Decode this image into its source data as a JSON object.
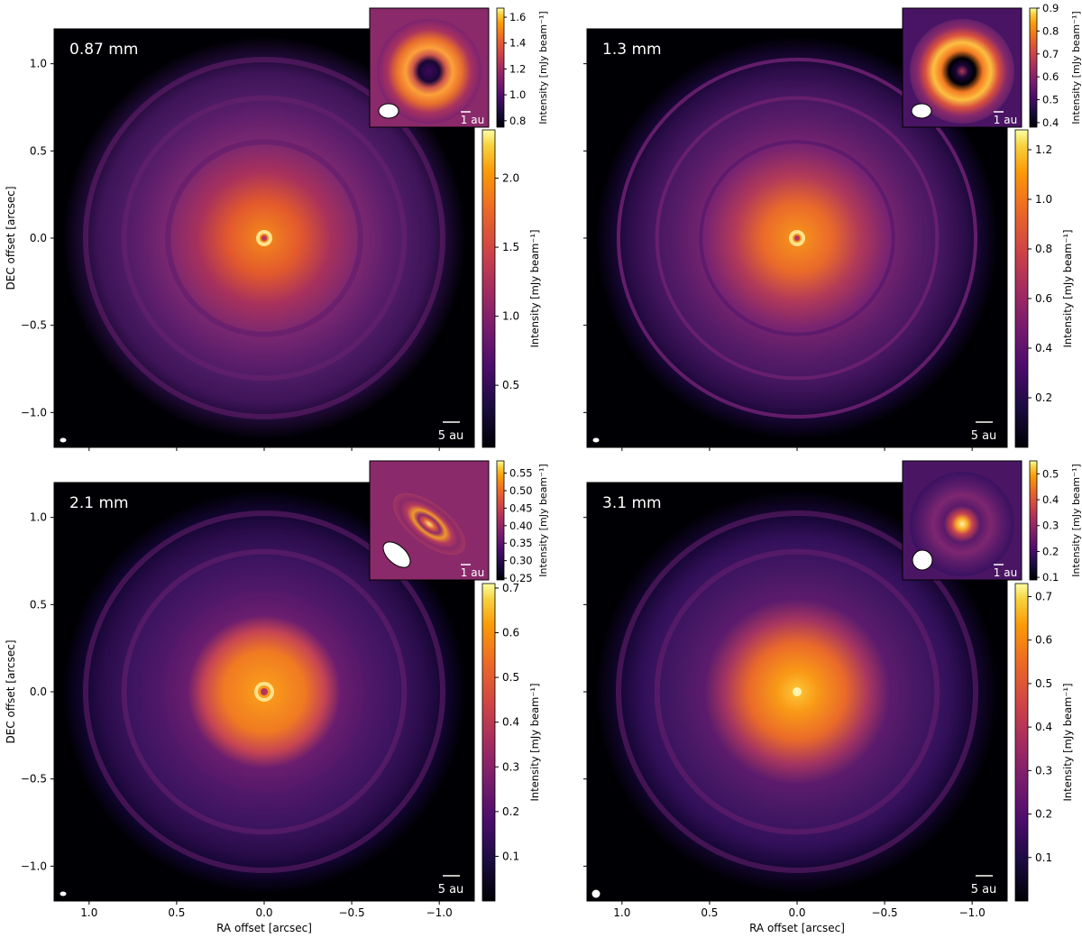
{
  "chart_data": [
    {
      "type": "heatmap",
      "label": "0.87 mm",
      "xlabel": "",
      "ylabel": "DEC offset [arcsec]",
      "xlim": [
        1.2,
        -1.2
      ],
      "ylim": [
        -1.2,
        1.2
      ],
      "xticks": [],
      "yticks": [
        {
          "v": 1.0,
          "t": "1.0"
        },
        {
          "v": 0.5,
          "t": "0.5"
        },
        {
          "v": 0.0,
          "t": "0.0"
        },
        {
          "v": -0.5,
          "t": "−0.5"
        },
        {
          "v": -1.0,
          "t": "−1.0"
        }
      ],
      "scalebar": "5 au",
      "rings_arcsec": [
        0.55,
        0.8,
        1.02
      ],
      "colorbar": {
        "label": "Intensity [mJy beam⁻¹]",
        "range": [
          0.05,
          2.35
        ],
        "ticks": [
          {
            "v": 0.5,
            "t": "0.5"
          },
          {
            "v": 1.0,
            "t": "1.0"
          },
          {
            "v": 1.5,
            "t": "1.5"
          },
          {
            "v": 2.0,
            "t": "2.0"
          }
        ]
      },
      "inset": {
        "scalebar": "1 au",
        "beam": "horizontal-ellipse",
        "colorbar": {
          "label": "Intensity [mJy beam⁻¹]",
          "range": [
            0.75,
            1.67
          ],
          "ticks": [
            {
              "v": 0.8,
              "t": "0.8"
            },
            {
              "v": 1.0,
              "t": "1.0"
            },
            {
              "v": 1.2,
              "t": "1.2"
            },
            {
              "v": 1.4,
              "t": "1.4"
            },
            {
              "v": 1.6,
              "t": "1.6"
            }
          ]
        }
      }
    },
    {
      "type": "heatmap",
      "label": "1.3 mm",
      "xlabel": "",
      "ylabel": "",
      "xlim": [
        1.2,
        -1.2
      ],
      "ylim": [
        -1.2,
        1.2
      ],
      "xticks": [],
      "yticks": [],
      "scalebar": "5 au",
      "rings_arcsec": [
        0.55,
        0.8,
        1.02
      ],
      "colorbar": {
        "label": "Intensity [mJy beam⁻¹]",
        "range": [
          0.0,
          1.28
        ],
        "ticks": [
          {
            "v": 0.2,
            "t": "0.2"
          },
          {
            "v": 0.4,
            "t": "0.4"
          },
          {
            "v": 0.6,
            "t": "0.6"
          },
          {
            "v": 0.8,
            "t": "0.8"
          },
          {
            "v": 1.0,
            "t": "1.0"
          },
          {
            "v": 1.2,
            "t": "1.2"
          }
        ]
      },
      "inset": {
        "scalebar": "1 au",
        "beam": "horizontal-ellipse",
        "colorbar": {
          "label": "Intensity [mJy beam⁻¹]",
          "range": [
            0.38,
            0.9
          ],
          "ticks": [
            {
              "v": 0.4,
              "t": "0.4"
            },
            {
              "v": 0.5,
              "t": "0.5"
            },
            {
              "v": 0.6,
              "t": "0.6"
            },
            {
              "v": 0.7,
              "t": "0.7"
            },
            {
              "v": 0.8,
              "t": "0.8"
            },
            {
              "v": 0.9,
              "t": "0.9"
            }
          ]
        }
      }
    },
    {
      "type": "heatmap",
      "label": "2.1 mm",
      "xlabel": "RA offset [arcsec]",
      "ylabel": "DEC offset [arcsec]",
      "xlim": [
        1.2,
        -1.2
      ],
      "ylim": [
        -1.2,
        1.2
      ],
      "xticks": [
        {
          "v": 1.0,
          "t": "1.0"
        },
        {
          "v": 0.5,
          "t": "0.5"
        },
        {
          "v": 0.0,
          "t": "0.0"
        },
        {
          "v": -0.5,
          "t": "−0.5"
        },
        {
          "v": -1.0,
          "t": "−1.0"
        }
      ],
      "yticks": [
        {
          "v": 1.0,
          "t": "1.0"
        },
        {
          "v": 0.5,
          "t": "0.5"
        },
        {
          "v": 0.0,
          "t": "0.0"
        },
        {
          "v": -0.5,
          "t": "−0.5"
        },
        {
          "v": -1.0,
          "t": "−1.0"
        }
      ],
      "scalebar": "5 au",
      "rings_arcsec": [
        0.55,
        0.8,
        1.02
      ],
      "colorbar": {
        "label": "Intensity [mJy beam⁻¹]",
        "range": [
          0.0,
          0.71
        ],
        "ticks": [
          {
            "v": 0.1,
            "t": "0.1"
          },
          {
            "v": 0.2,
            "t": "0.2"
          },
          {
            "v": 0.3,
            "t": "0.3"
          },
          {
            "v": 0.4,
            "t": "0.4"
          },
          {
            "v": 0.5,
            "t": "0.5"
          },
          {
            "v": 0.6,
            "t": "0.6"
          },
          {
            "v": 0.7,
            "t": "0.7"
          }
        ]
      },
      "inset": {
        "scalebar": "1 au",
        "beam": "tilted-ellipse",
        "colorbar": {
          "label": "Intensity [mJy beam⁻¹]",
          "range": [
            0.245,
            0.585
          ],
          "ticks": [
            {
              "v": 0.25,
              "t": "0.25"
            },
            {
              "v": 0.3,
              "t": "0.30"
            },
            {
              "v": 0.35,
              "t": "0.35"
            },
            {
              "v": 0.4,
              "t": "0.40"
            },
            {
              "v": 0.45,
              "t": "0.45"
            },
            {
              "v": 0.5,
              "t": "0.50"
            },
            {
              "v": 0.55,
              "t": "0.55"
            }
          ]
        }
      }
    },
    {
      "type": "heatmap",
      "label": "3.1 mm",
      "xlabel": "RA offset [arcsec]",
      "ylabel": "",
      "xlim": [
        1.2,
        -1.2
      ],
      "ylim": [
        -1.2,
        1.2
      ],
      "xticks": [
        {
          "v": 1.0,
          "t": "1.0"
        },
        {
          "v": 0.5,
          "t": "0.5"
        },
        {
          "v": 0.0,
          "t": "0.0"
        },
        {
          "v": -0.5,
          "t": "−0.5"
        },
        {
          "v": -1.0,
          "t": "−1.0"
        }
      ],
      "yticks": [],
      "scalebar": "5 au",
      "rings_arcsec": [
        0.55,
        0.8,
        1.02
      ],
      "colorbar": {
        "label": "Intensity [mJy beam⁻¹]",
        "range": [
          0.0,
          0.73
        ],
        "ticks": [
          {
            "v": 0.1,
            "t": "0.1"
          },
          {
            "v": 0.2,
            "t": "0.2"
          },
          {
            "v": 0.3,
            "t": "0.3"
          },
          {
            "v": 0.4,
            "t": "0.4"
          },
          {
            "v": 0.5,
            "t": "0.5"
          },
          {
            "v": 0.6,
            "t": "0.6"
          },
          {
            "v": 0.7,
            "t": "0.7"
          }
        ]
      },
      "inset": {
        "scalebar": "1 au",
        "beam": "circle",
        "colorbar": {
          "label": "Intensity [mJy beam⁻¹]",
          "range": [
            0.09,
            0.55
          ],
          "ticks": [
            {
              "v": 0.1,
              "t": "0.1"
            },
            {
              "v": 0.2,
              "t": "0.2"
            },
            {
              "v": 0.3,
              "t": "0.3"
            },
            {
              "v": 0.4,
              "t": "0.4"
            },
            {
              "v": 0.5,
              "t": "0.5"
            }
          ]
        }
      }
    }
  ],
  "colormap": "inferno",
  "colors": {
    "background": "#000004",
    "mid": "#781c6d",
    "high": "#ed6925",
    "peak": "#fcffa4",
    "annotation": "#ffffff",
    "axis": "#000000"
  }
}
